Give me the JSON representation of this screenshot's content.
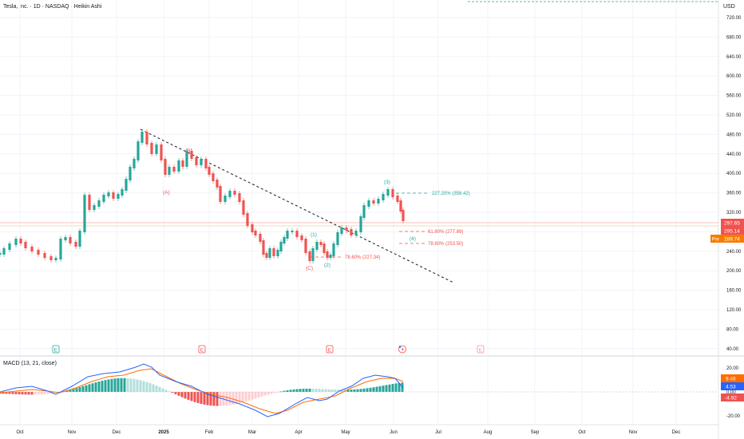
{
  "header": {
    "symbol_title": "Tesla, Inc. · 1D · NASDAQ · Heikin Ashi",
    "currency": "USD",
    "macd_title": "MACD (13, 21, close)"
  },
  "price_axis": {
    "labels": [
      "720.00",
      "680.00",
      "640.00",
      "600.00",
      "560.00",
      "520.00",
      "480.00",
      "440.00",
      "400.00",
      "360.00",
      "320.00",
      "280.00",
      "240.00",
      "200.00",
      "160.00",
      "120.00",
      "80.00",
      "40.00"
    ],
    "ylim": [
      30,
      745
    ]
  },
  "price_tags": {
    "last": "297.65",
    "close": "295.14",
    "pre_label": "Pre",
    "pre_value": "289.74"
  },
  "macd_axis": {
    "labels": [
      "20.00",
      "0.00",
      "-20.00"
    ],
    "ylim": [
      -25,
      27
    ],
    "tags": [
      "9.46",
      "4.53",
      "-4.92"
    ]
  },
  "time_axis": {
    "labels": [
      "Oct",
      "Nov",
      "Dec",
      "2025",
      "Feb",
      "Mar",
      "Apr",
      "May",
      "Jun",
      "Jul",
      "Aug",
      "Sep",
      "Oct",
      "Nov",
      "Dec"
    ]
  },
  "event_markers": {
    "labels": [
      "E",
      "E",
      "E",
      "",
      "E"
    ]
  },
  "annotations": {
    "wave_A": "(A)",
    "wave_B": "(B)",
    "wave_C": "(C)",
    "wave_1": "(1)",
    "wave_2": "(2)",
    "wave_3": "(3)",
    "wave_4": "(4)",
    "fib_227": "227.20% (358.42)",
    "fib_618": "61.80% (277.89)",
    "fib_786_upper": "78.60% (253.50)",
    "fib_786_lower": "78.60% (227.34)"
  },
  "colors": {
    "up": "#26a69a",
    "down": "#ef5350",
    "macd_line": "#2962ff",
    "signal_line": "#ff6d00",
    "grid": "#f0f3fa",
    "pre_tag": "#f57c00"
  },
  "chart_data": {
    "type": "line",
    "title": "Tesla, Inc. · 1D · NASDAQ · Heikin Ashi",
    "series": [
      {
        "x": [
          "2024-09-23",
          "2024-10-01",
          "2024-10-10",
          "2024-10-23",
          "2024-10-25",
          "2024-11-05",
          "2024-11-11",
          "2024-11-22",
          "2024-12-05",
          "2024-12-17",
          "2024-12-31",
          "2025-01-10",
          "2025-01-27",
          "2025-02-10",
          "2025-02-24",
          "2025-03-10",
          "2025-03-21",
          "2025-03-31",
          "2025-04-08",
          "2025-04-21",
          "2025-04-30",
          "2025-05-14",
          "2025-05-28",
          "2025-06-03",
          "2025-06-05"
        ],
        "values": [
          235,
          258,
          225,
          215,
          250,
          250,
          340,
          340,
          360,
          470,
          410,
          395,
          405,
          350,
          300,
          230,
          245,
          265,
          220,
          235,
          285,
          340,
          360,
          340,
          295
        ]
      }
    ],
    "ylabel": "USD",
    "ylim": [
      30,
      745
    ],
    "macd": {
      "tags": [
        9.46,
        4.53,
        -4.92
      ]
    }
  }
}
